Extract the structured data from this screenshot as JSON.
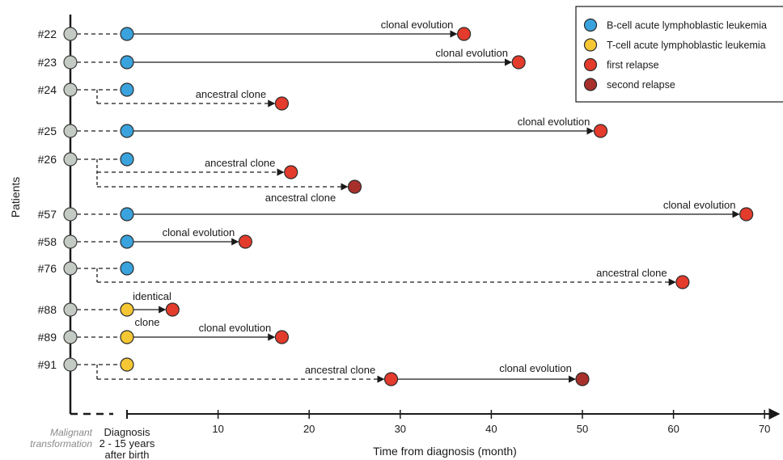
{
  "colors": {
    "precursor": "#c4cac4",
    "b_cell": "#3aa3dd",
    "t_cell": "#f6c735",
    "first_relapse": "#e33b2c",
    "second_relapse": "#a8302b"
  },
  "y_axis_label": "Patients",
  "x_axis_label": "Time from diagnosis (month)",
  "x_ticks": [
    10,
    20,
    30,
    40,
    50,
    60,
    70
  ],
  "origin": {
    "malignant_lines": [
      "Malignant",
      "transformation"
    ],
    "diagnosis_lines": [
      "Diagnosis",
      "2 - 15 years",
      "after birth"
    ]
  },
  "legend": [
    {
      "label": "B-cell acute lymphoblastic leukemia",
      "color_key": "b_cell"
    },
    {
      "label": "T-cell acute lymphoblastic leukemia",
      "color_key": "t_cell"
    },
    {
      "label": "first relapse",
      "color_key": "first_relapse"
    },
    {
      "label": "second relapse",
      "color_key": "second_relapse"
    }
  ],
  "patients": [
    {
      "id": "#22",
      "diagnosis": "b_cell",
      "relapses": [
        {
          "month": 37,
          "type": "first_relapse",
          "path": "direct",
          "label": "clonal evolution"
        }
      ]
    },
    {
      "id": "#23",
      "diagnosis": "b_cell",
      "relapses": [
        {
          "month": 43,
          "type": "first_relapse",
          "path": "direct",
          "label": "clonal evolution"
        }
      ]
    },
    {
      "id": "#24",
      "diagnosis": "b_cell",
      "relapses": [
        {
          "month": 17,
          "type": "first_relapse",
          "path": "ancestral",
          "label": "ancestral clone"
        }
      ]
    },
    {
      "id": "#25",
      "diagnosis": "b_cell",
      "relapses": [
        {
          "month": 52,
          "type": "first_relapse",
          "path": "direct",
          "label": "clonal evolution"
        }
      ]
    },
    {
      "id": "#26",
      "diagnosis": "b_cell",
      "relapses": [
        {
          "month": 18,
          "type": "first_relapse",
          "path": "ancestral",
          "label": "ancestral clone"
        },
        {
          "month": 25,
          "type": "second_relapse",
          "path": "ancestral",
          "label": "ancestral clone"
        }
      ]
    },
    {
      "id": "#57",
      "diagnosis": "b_cell",
      "relapses": [
        {
          "month": 68,
          "type": "first_relapse",
          "path": "direct",
          "label": "clonal evolution"
        }
      ]
    },
    {
      "id": "#58",
      "diagnosis": "b_cell",
      "relapses": [
        {
          "month": 13,
          "type": "first_relapse",
          "path": "direct",
          "label": "clonal evolution"
        }
      ]
    },
    {
      "id": "#76",
      "diagnosis": "b_cell",
      "relapses": [
        {
          "month": 61,
          "type": "first_relapse",
          "path": "ancestral",
          "label": "ancestral clone"
        }
      ]
    },
    {
      "id": "#88",
      "diagnosis": "t_cell",
      "relapses": [
        {
          "month": 5,
          "type": "first_relapse",
          "path": "direct",
          "label": "identical clone"
        }
      ]
    },
    {
      "id": "#89",
      "diagnosis": "t_cell",
      "relapses": [
        {
          "month": 17,
          "type": "first_relapse",
          "path": "direct",
          "label": "clonal evolution"
        }
      ]
    },
    {
      "id": "#91",
      "diagnosis": "t_cell",
      "relapses": [
        {
          "month": 29,
          "type": "first_relapse",
          "path": "ancestral",
          "label": "ancestral clone"
        },
        {
          "month": 50,
          "type": "second_relapse",
          "path": "from_previous",
          "label": "clonal evolution"
        }
      ]
    }
  ]
}
